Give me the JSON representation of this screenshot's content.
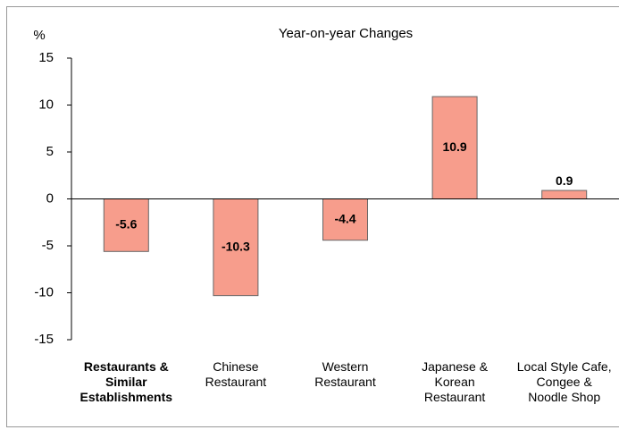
{
  "chart_data": {
    "type": "bar",
    "title": "Year-on-year Changes",
    "y_label": "%",
    "categories": [
      "Restaurants & Similar Establishments",
      "Chinese Restaurant",
      "Western Restaurant",
      "Japanese & Korean Restaurant",
      "Local Style Cafe, Congee & Noodle Shop"
    ],
    "values": [
      -5.6,
      -10.3,
      -4.4,
      10.9,
      0.9
    ],
    "color": "#f79d8c",
    "ylim": [
      -15,
      15
    ],
    "yticks": [
      -15,
      -10,
      -5,
      0,
      5,
      10,
      15
    ]
  }
}
